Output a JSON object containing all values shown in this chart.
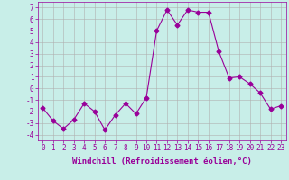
{
  "x": [
    0,
    1,
    2,
    3,
    4,
    5,
    6,
    7,
    8,
    9,
    10,
    11,
    12,
    13,
    14,
    15,
    16,
    17,
    18,
    19,
    20,
    21,
    22,
    23
  ],
  "y": [
    -1.7,
    -2.8,
    -3.5,
    -2.7,
    -1.3,
    -2.0,
    -3.6,
    -2.3,
    -1.3,
    -2.2,
    -0.8,
    5.0,
    6.8,
    5.5,
    6.8,
    6.6,
    6.6,
    3.2,
    0.9,
    1.0,
    0.4,
    -0.4,
    -1.8,
    -1.5
  ],
  "line_color": "#990099",
  "marker": "D",
  "marker_size": 2.5,
  "bg_color": "#c8eee8",
  "grid_color": "#b0b0b0",
  "xlabel": "Windchill (Refroidissement éolien,°C)",
  "xlim": [
    -0.5,
    23.5
  ],
  "ylim": [
    -4.5,
    7.5
  ],
  "yticks": [
    -4,
    -3,
    -2,
    -1,
    0,
    1,
    2,
    3,
    4,
    5,
    6,
    7
  ],
  "xticks": [
    0,
    1,
    2,
    3,
    4,
    5,
    6,
    7,
    8,
    9,
    10,
    11,
    12,
    13,
    14,
    15,
    16,
    17,
    18,
    19,
    20,
    21,
    22,
    23
  ],
  "tick_fontsize": 5.5,
  "xlabel_fontsize": 6.5
}
